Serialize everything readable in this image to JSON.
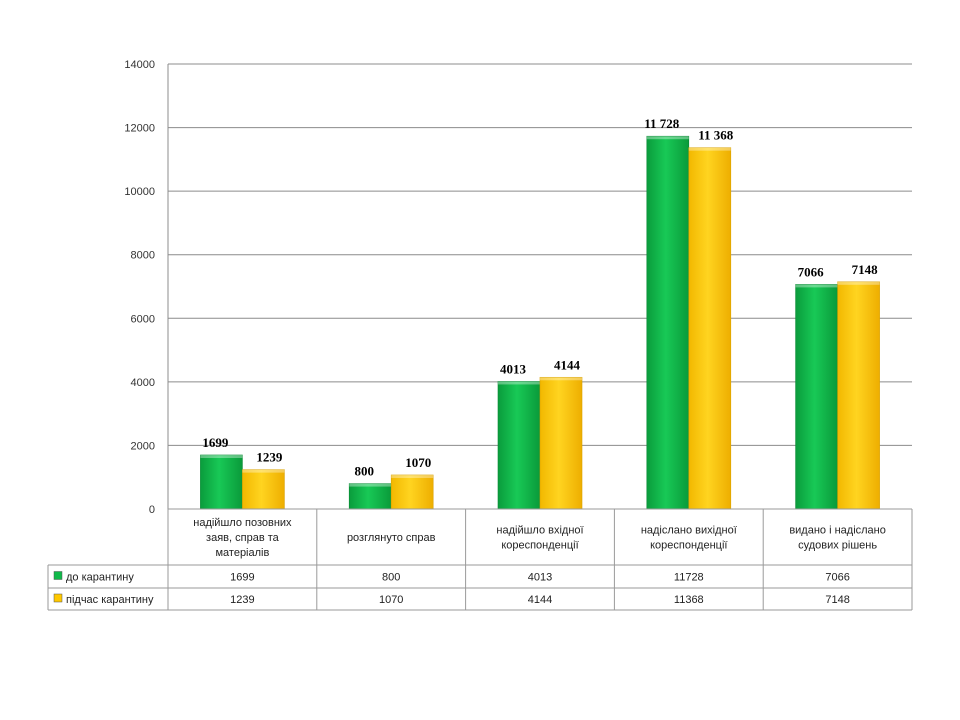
{
  "chart_data": {
    "type": "bar",
    "categories": [
      [
        "надійшло позовних",
        "заяв, справ та",
        "матеріалів"
      ],
      [
        "розглянуто справ"
      ],
      [
        "надійшло вхідної",
        "кореспонденції"
      ],
      [
        "надіслано вихідної",
        "кореспонденції"
      ],
      [
        "видано і надіслано",
        "судових рішень"
      ]
    ],
    "series": [
      {
        "name": "до карантину",
        "color": "#10b94a",
        "values": [
          1699,
          800,
          4013,
          11728,
          7066
        ],
        "data_labels": [
          "1699",
          "800",
          "4013",
          "11 728",
          "7066"
        ],
        "table_values": [
          "1699",
          "800",
          "4013",
          "11728",
          "7066"
        ]
      },
      {
        "name": "підчас карантину",
        "color": "#ffc800",
        "values": [
          1239,
          1070,
          4144,
          11368,
          7148
        ],
        "data_labels": [
          "1239",
          "1070",
          "4144",
          "11 368",
          "7148"
        ],
        "table_values": [
          "1239",
          "1070",
          "4144",
          "11368",
          "7148"
        ]
      }
    ],
    "ylim": [
      0,
      14000
    ],
    "yticks": [
      "0",
      "2000",
      "4000",
      "6000",
      "8000",
      "10000",
      "12000",
      "14000"
    ],
    "grid": true,
    "legend": "data-table"
  }
}
